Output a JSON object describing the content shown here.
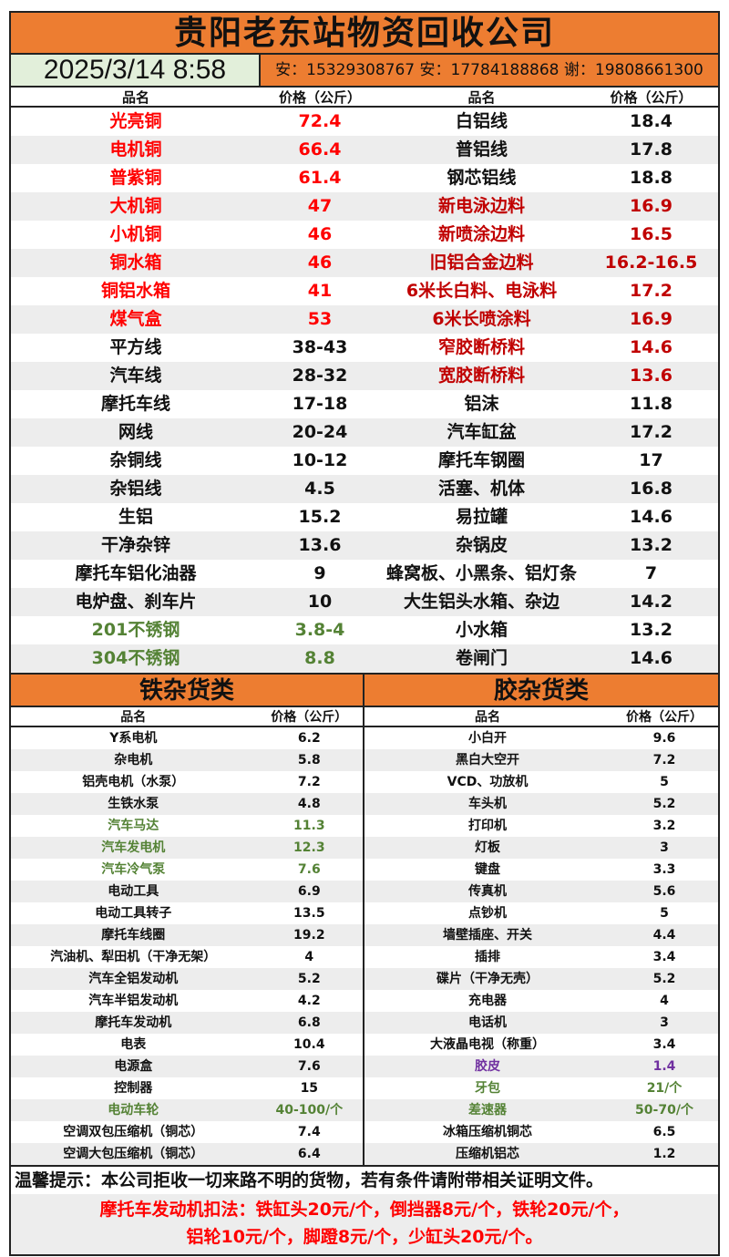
{
  "title": "贵阳老东站物资回收公司",
  "datetime": "2025/3/14 8:58",
  "contacts": "安：15329308767 安：17784188868 谢：19808661300",
  "colors": {
    "accent": "#ED7D31",
    "date_bg": "#E2EFDA",
    "red": "#FF0000",
    "dark_red": "#C00000",
    "green": "#548235",
    "purple": "#7030A0",
    "black": "#111111"
  },
  "top_headers": [
    "品名",
    "价格（公斤）",
    "品名",
    "价格（公斤）"
  ],
  "top_rows": [
    [
      {
        "n": "光亮铜",
        "p": "72.4",
        "c": "#FF0000"
      },
      {
        "n": "白铝线",
        "p": "18.4",
        "c": "#111111"
      }
    ],
    [
      {
        "n": "电机铜",
        "p": "66.4",
        "c": "#FF0000"
      },
      {
        "n": "普铝线",
        "p": "17.8",
        "c": "#111111"
      }
    ],
    [
      {
        "n": "普紫铜",
        "p": "61.4",
        "c": "#FF0000"
      },
      {
        "n": "钢芯铝线",
        "p": "18.8",
        "c": "#111111"
      }
    ],
    [
      {
        "n": "大机铜",
        "p": "47",
        "c": "#FF0000"
      },
      {
        "n": "新电泳边料",
        "p": "16.9",
        "c": "#C00000"
      }
    ],
    [
      {
        "n": "小机铜",
        "p": "46",
        "c": "#FF0000"
      },
      {
        "n": "新喷涂边料",
        "p": "16.5",
        "c": "#C00000"
      }
    ],
    [
      {
        "n": "铜水箱",
        "p": "46",
        "c": "#FF0000"
      },
      {
        "n": "旧铝合金边料",
        "p": "16.2-16.5",
        "c": "#C00000"
      }
    ],
    [
      {
        "n": "铜铝水箱",
        "p": "41",
        "c": "#FF0000"
      },
      {
        "n": "6米长白料、电泳料",
        "p": "17.2",
        "c": "#C00000"
      }
    ],
    [
      {
        "n": "煤气盒",
        "p": "53",
        "c": "#FF0000"
      },
      {
        "n": "6米长喷涂料",
        "p": "16.9",
        "c": "#C00000"
      }
    ],
    [
      {
        "n": "平方线",
        "p": "38-43",
        "c": "#111111"
      },
      {
        "n": "窄胶断桥料",
        "p": "14.6",
        "c": "#C00000"
      }
    ],
    [
      {
        "n": "汽车线",
        "p": "28-32",
        "c": "#111111"
      },
      {
        "n": "宽胶断桥料",
        "p": "13.6",
        "c": "#C00000"
      }
    ],
    [
      {
        "n": "摩托车线",
        "p": "17-18",
        "c": "#111111"
      },
      {
        "n": "铝沫",
        "p": "11.8",
        "c": "#111111"
      }
    ],
    [
      {
        "n": "网线",
        "p": "20-24",
        "c": "#111111"
      },
      {
        "n": "汽车缸盆",
        "p": "17.2",
        "c": "#111111"
      }
    ],
    [
      {
        "n": "杂铜线",
        "p": "10-12",
        "c": "#111111"
      },
      {
        "n": "摩托车钢圈",
        "p": "17",
        "c": "#111111"
      }
    ],
    [
      {
        "n": "杂铝线",
        "p": "4.5",
        "c": "#111111"
      },
      {
        "n": "活塞、机体",
        "p": "16.8",
        "c": "#111111"
      }
    ],
    [
      {
        "n": "生铝",
        "p": "15.2",
        "c": "#111111"
      },
      {
        "n": "易拉罐",
        "p": "14.6",
        "c": "#111111"
      }
    ],
    [
      {
        "n": "干净杂锌",
        "p": "13.6",
        "c": "#111111"
      },
      {
        "n": "杂锅皮",
        "p": "13.2",
        "c": "#111111"
      }
    ],
    [
      {
        "n": "摩托车铝化油器",
        "p": "9",
        "c": "#111111"
      },
      {
        "n": "蜂窝板、小黑条、铝灯条",
        "p": "7",
        "c": "#111111"
      }
    ],
    [
      {
        "n": "电炉盘、刹车片",
        "p": "10",
        "c": "#111111"
      },
      {
        "n": "大生铝头水箱、杂边",
        "p": "14.2",
        "c": "#111111"
      }
    ],
    [
      {
        "n": "201不锈钢",
        "p": "3.8-4",
        "c": "#548235"
      },
      {
        "n": "小水箱",
        "p": "13.2",
        "c": "#111111"
      }
    ],
    [
      {
        "n": "304不锈钢",
        "p": "8.8",
        "c": "#548235"
      },
      {
        "n": "卷闸门",
        "p": "14.6",
        "c": "#111111"
      }
    ]
  ],
  "sections": [
    {
      "title": "铁杂货类",
      "headers": [
        "品名",
        "价格（公斤）"
      ],
      "rows": [
        {
          "n": "Y系电机",
          "p": "6.2",
          "c": "#111111"
        },
        {
          "n": "杂电机",
          "p": "5.8",
          "c": "#111111"
        },
        {
          "n": "铝壳电机（水泵）",
          "p": "7.2",
          "c": "#111111"
        },
        {
          "n": "生铁水泵",
          "p": "4.8",
          "c": "#111111"
        },
        {
          "n": "汽车马达",
          "p": "11.3",
          "c": "#548235"
        },
        {
          "n": "汽车发电机",
          "p": "12.3",
          "c": "#548235"
        },
        {
          "n": "汽车冷气泵",
          "p": "7.6",
          "c": "#548235"
        },
        {
          "n": "电动工具",
          "p": "6.9",
          "c": "#111111"
        },
        {
          "n": "电动工具转子",
          "p": "13.5",
          "c": "#111111"
        },
        {
          "n": "摩托车线圈",
          "p": "19.2",
          "c": "#111111"
        },
        {
          "n": "汽油机、犁田机（干净无架）",
          "p": "4",
          "c": "#111111"
        },
        {
          "n": "汽车全铝发动机",
          "p": "5.2",
          "c": "#111111"
        },
        {
          "n": "汽车半铝发动机",
          "p": "4.2",
          "c": "#111111"
        },
        {
          "n": "摩托车发动机",
          "p": "6.8",
          "c": "#111111"
        },
        {
          "n": "电表",
          "p": "10.4",
          "c": "#111111"
        },
        {
          "n": "电源盒",
          "p": "7.6",
          "c": "#111111"
        },
        {
          "n": "控制器",
          "p": "15",
          "c": "#111111"
        },
        {
          "n": "电动车轮",
          "p": "40-100/个",
          "c": "#548235"
        },
        {
          "n": "空调双包压缩机（铜芯）",
          "p": "7.4",
          "c": "#111111"
        },
        {
          "n": "空调大包压缩机（铜芯）",
          "p": "6.4",
          "c": "#111111"
        }
      ]
    },
    {
      "title": "胶杂货类",
      "headers": [
        "品名",
        "价格（公斤）"
      ],
      "rows": [
        {
          "n": "小白开",
          "p": "9.6",
          "c": "#111111"
        },
        {
          "n": "黑白大空开",
          "p": "7.2",
          "c": "#111111"
        },
        {
          "n": "VCD、功放机",
          "p": "5",
          "c": "#111111"
        },
        {
          "n": "车头机",
          "p": "5.2",
          "c": "#111111"
        },
        {
          "n": "打印机",
          "p": "3.2",
          "c": "#111111"
        },
        {
          "n": "灯板",
          "p": "3",
          "c": "#111111"
        },
        {
          "n": "键盘",
          "p": "3.3",
          "c": "#111111"
        },
        {
          "n": "传真机",
          "p": "5.6",
          "c": "#111111"
        },
        {
          "n": "点钞机",
          "p": "5",
          "c": "#111111"
        },
        {
          "n": "墙壁插座、开关",
          "p": "4.4",
          "c": "#111111"
        },
        {
          "n": "插排",
          "p": "3.4",
          "c": "#111111"
        },
        {
          "n": "碟片（干净无壳）",
          "p": "5.2",
          "c": "#111111"
        },
        {
          "n": "充电器",
          "p": "4",
          "c": "#111111"
        },
        {
          "n": "电话机",
          "p": "3",
          "c": "#111111"
        },
        {
          "n": "大液晶电视（称重）",
          "p": "3.4",
          "c": "#111111"
        },
        {
          "n": "胶皮",
          "p": "1.4",
          "c": "#7030A0"
        },
        {
          "n": "牙包",
          "p": "21/个",
          "c": "#548235"
        },
        {
          "n": "差速器",
          "p": "50-70/个",
          "c": "#548235"
        },
        {
          "n": "冰箱压缩机铜芯",
          "p": "6.5",
          "c": "#111111"
        },
        {
          "n": "压缩机铝芯",
          "p": "1.2",
          "c": "#111111"
        }
      ]
    }
  ],
  "footer": {
    "tip": "温馨提示：本公司拒收一切来路不明的货物，若有条件请附带相关证明文件。",
    "deduction_line1": "摩托车发动机扣法：铁缸头20元/个，倒挡器8元/个，铁轮20元/个，",
    "deduction_line2": "铝轮10元/个，脚蹬8元/个，少缸头20元/个。"
  }
}
